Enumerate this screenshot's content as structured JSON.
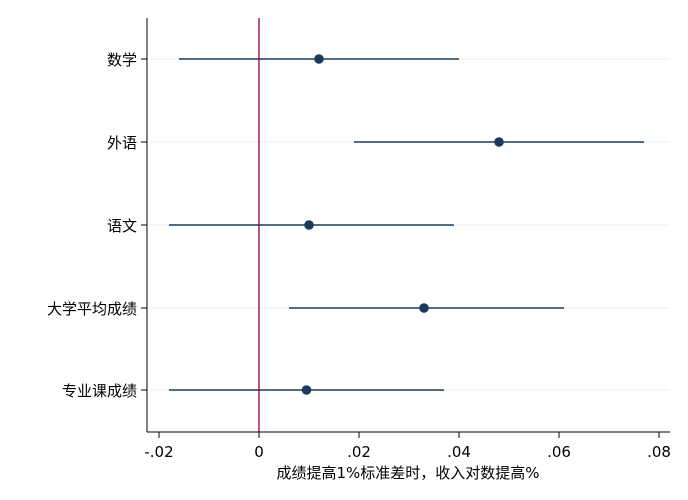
{
  "chart_data": {
    "type": "coefficient-plot",
    "xlabel": "成绩提高1%标准差时，收入对数提高%",
    "ylabel": "",
    "xlim": [
      -0.02,
      0.08
    ],
    "xticks": [
      {
        "value": -0.02,
        "label": "-.02"
      },
      {
        "value": 0,
        "label": "0"
      },
      {
        "value": 0.02,
        "label": ".02"
      },
      {
        "value": 0.04,
        "label": ".04"
      },
      {
        "value": 0.06,
        "label": ".06"
      },
      {
        "value": 0.08,
        "label": ".08"
      }
    ],
    "reference_line": {
      "x": 0,
      "color": "#a0103e"
    },
    "grid": true,
    "colors": {
      "point": "#1b3a5c",
      "ci": "#1b3a5c",
      "grid": "#e8edf2",
      "axis": "#000000"
    },
    "series": [
      {
        "category": "数学",
        "estimate": 0.012,
        "ci_low": -0.016,
        "ci_high": 0.04
      },
      {
        "category": "外语",
        "estimate": 0.048,
        "ci_low": 0.019,
        "ci_high": 0.077
      },
      {
        "category": "语文",
        "estimate": 0.01,
        "ci_low": -0.018,
        "ci_high": 0.039
      },
      {
        "category": "大学平均成绩",
        "estimate": 0.033,
        "ci_low": 0.006,
        "ci_high": 0.061
      },
      {
        "category": "专业课成绩",
        "estimate": 0.0095,
        "ci_low": -0.018,
        "ci_high": 0.037
      }
    ]
  }
}
